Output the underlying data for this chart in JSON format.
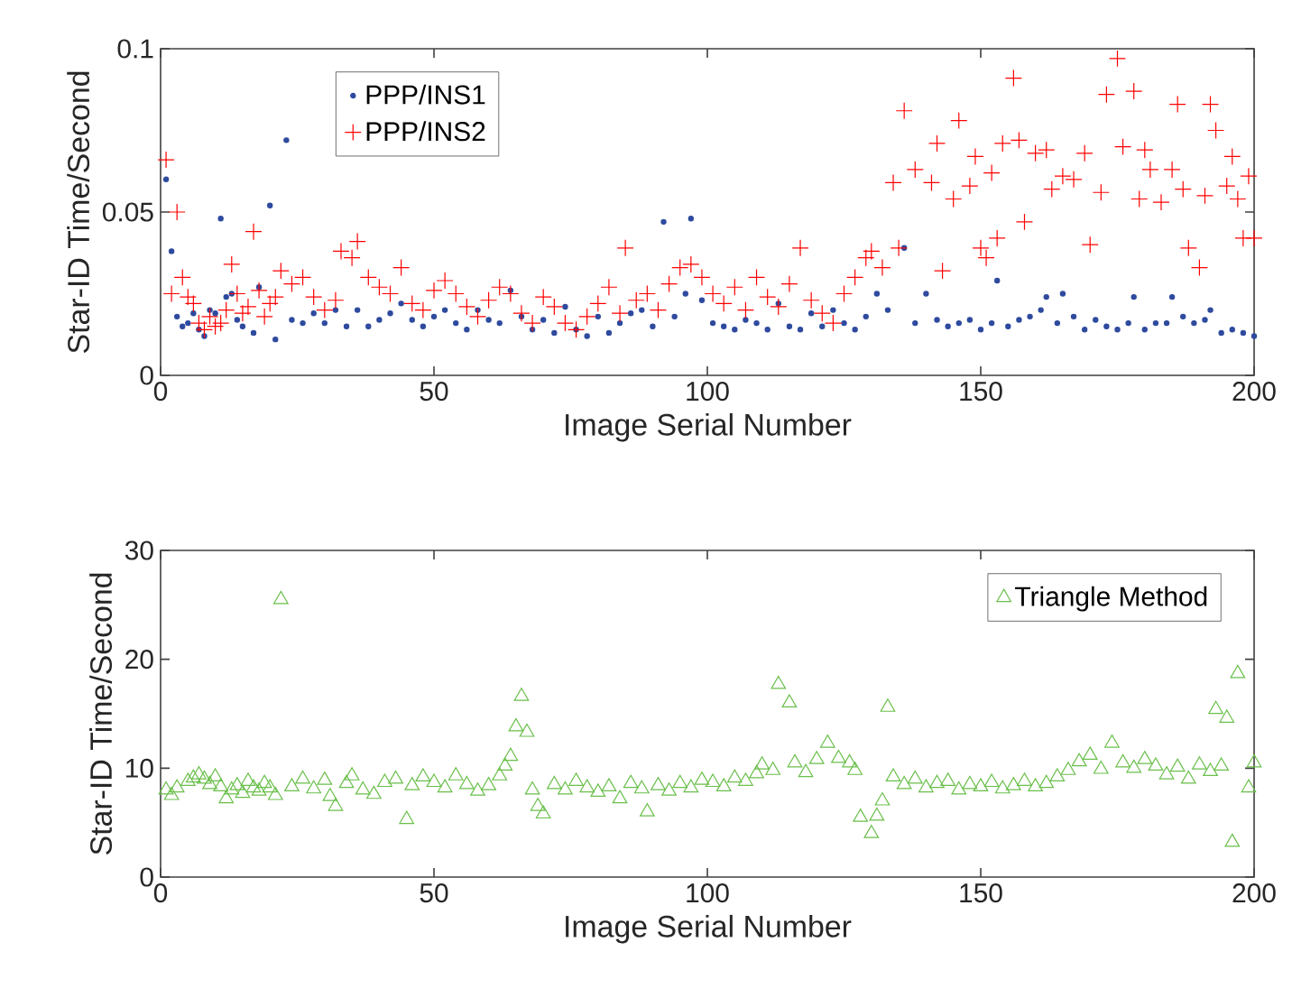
{
  "chart_data": [
    {
      "type": "scatter",
      "xlabel": "Image Serial Number",
      "ylabel": "Star-ID Time/Second",
      "xlim": [
        0,
        200
      ],
      "ylim": [
        0,
        0.1
      ],
      "xticks": [
        0,
        50,
        100,
        150,
        200
      ],
      "yticks": [
        0,
        0.05,
        0.1
      ],
      "legend": "top left",
      "series": [
        {
          "name": "PPP/INS1",
          "color": "#2e4a9e",
          "marker": "circle",
          "x": [
            1,
            2,
            3,
            4,
            5,
            6,
            7,
            8,
            9,
            10,
            11,
            12,
            13,
            14,
            15,
            17,
            18,
            20,
            21,
            23,
            24,
            26,
            28,
            30,
            32,
            34,
            36,
            38,
            40,
            42,
            44,
            46,
            48,
            50,
            52,
            54,
            56,
            58,
            60,
            62,
            64,
            66,
            68,
            70,
            72,
            74,
            76,
            78,
            80,
            82,
            84,
            86,
            88,
            90,
            92,
            94,
            96,
            97,
            99,
            101,
            103,
            105,
            107,
            109,
            111,
            113,
            115,
            117,
            119,
            121,
            123,
            125,
            127,
            129,
            131,
            133,
            136,
            138,
            140,
            142,
            144,
            146,
            148,
            150,
            152,
            153,
            155,
            157,
            159,
            161,
            162,
            164,
            165,
            167,
            169,
            171,
            173,
            175,
            177,
            178,
            180,
            182,
            184,
            185,
            187,
            189,
            191,
            192,
            194,
            196,
            198,
            200
          ],
          "values": [
            0.06,
            0.038,
            0.018,
            0.015,
            0.016,
            0.019,
            0.014,
            0.012,
            0.02,
            0.019,
            0.048,
            0.024,
            0.025,
            0.017,
            0.015,
            0.013,
            0.027,
            0.052,
            0.011,
            0.072,
            0.017,
            0.016,
            0.019,
            0.016,
            0.02,
            0.015,
            0.02,
            0.015,
            0.017,
            0.019,
            0.022,
            0.017,
            0.015,
            0.018,
            0.02,
            0.016,
            0.014,
            0.02,
            0.017,
            0.016,
            0.026,
            0.018,
            0.014,
            0.017,
            0.013,
            0.021,
            0.014,
            0.012,
            0.018,
            0.013,
            0.016,
            0.019,
            0.02,
            0.015,
            0.047,
            0.018,
            0.025,
            0.048,
            0.023,
            0.016,
            0.015,
            0.014,
            0.017,
            0.016,
            0.014,
            0.022,
            0.015,
            0.014,
            0.019,
            0.015,
            0.02,
            0.016,
            0.014,
            0.018,
            0.025,
            0.02,
            0.039,
            0.016,
            0.025,
            0.017,
            0.015,
            0.016,
            0.017,
            0.014,
            0.016,
            0.029,
            0.015,
            0.017,
            0.018,
            0.02,
            0.024,
            0.016,
            0.025,
            0.018,
            0.014,
            0.017,
            0.015,
            0.014,
            0.016,
            0.024,
            0.014,
            0.016,
            0.016,
            0.024,
            0.018,
            0.016,
            0.017,
            0.02,
            0.013,
            0.014,
            0.013,
            0.012
          ]
        },
        {
          "name": "PPP/INS2",
          "color": "#ff0000",
          "marker": "cross",
          "x": [
            1,
            2,
            3,
            4,
            5,
            6,
            7,
            8,
            9,
            10,
            11,
            12,
            13,
            14,
            15,
            16,
            17,
            18,
            19,
            20,
            21,
            22,
            24,
            26,
            28,
            30,
            32,
            33,
            35,
            36,
            38,
            40,
            42,
            44,
            46,
            48,
            50,
            52,
            54,
            56,
            58,
            60,
            62,
            64,
            66,
            68,
            70,
            72,
            74,
            76,
            78,
            80,
            82,
            84,
            85,
            87,
            89,
            91,
            93,
            95,
            97,
            99,
            101,
            103,
            105,
            107,
            109,
            111,
            113,
            115,
            117,
            119,
            121,
            123,
            125,
            127,
            129,
            130,
            132,
            134,
            135,
            136,
            138,
            141,
            142,
            143,
            145,
            146,
            148,
            149,
            150,
            151,
            152,
            153,
            154,
            156,
            157,
            158,
            160,
            162,
            163,
            165,
            167,
            169,
            170,
            172,
            173,
            175,
            176,
            178,
            179,
            180,
            181,
            183,
            185,
            186,
            187,
            188,
            190,
            191,
            192,
            193,
            195,
            196,
            197,
            198,
            199,
            200
          ],
          "values": [
            0.066,
            0.025,
            0.05,
            0.03,
            0.024,
            0.022,
            0.016,
            0.014,
            0.018,
            0.015,
            0.016,
            0.02,
            0.034,
            0.025,
            0.019,
            0.021,
            0.044,
            0.026,
            0.018,
            0.022,
            0.024,
            0.032,
            0.028,
            0.03,
            0.024,
            0.02,
            0.023,
            0.038,
            0.036,
            0.041,
            0.03,
            0.027,
            0.025,
            0.033,
            0.022,
            0.02,
            0.026,
            0.029,
            0.025,
            0.021,
            0.018,
            0.023,
            0.027,
            0.025,
            0.019,
            0.016,
            0.024,
            0.021,
            0.016,
            0.014,
            0.018,
            0.022,
            0.027,
            0.019,
            0.039,
            0.023,
            0.025,
            0.02,
            0.028,
            0.033,
            0.034,
            0.03,
            0.025,
            0.022,
            0.027,
            0.02,
            0.03,
            0.024,
            0.021,
            0.028,
            0.039,
            0.023,
            0.019,
            0.016,
            0.025,
            0.03,
            0.036,
            0.038,
            0.033,
            0.059,
            0.039,
            0.081,
            0.063,
            0.059,
            0.071,
            0.032,
            0.054,
            0.078,
            0.058,
            0.067,
            0.039,
            0.036,
            0.062,
            0.042,
            0.071,
            0.091,
            0.072,
            0.047,
            0.068,
            0.069,
            0.057,
            0.061,
            0.06,
            0.068,
            0.04,
            0.056,
            0.086,
            0.097,
            0.07,
            0.087,
            0.054,
            0.069,
            0.063,
            0.053,
            0.063,
            0.083,
            0.057,
            0.039,
            0.033,
            0.055,
            0.083,
            0.075,
            0.058,
            0.067,
            0.054,
            0.042,
            0.061,
            0.042
          ]
        }
      ]
    },
    {
      "type": "scatter",
      "xlabel": "Image Serial Number",
      "ylabel": "Star-ID Time/Second",
      "xlim": [
        0,
        200
      ],
      "ylim": [
        0,
        30
      ],
      "xticks": [
        0,
        50,
        100,
        150,
        200
      ],
      "yticks": [
        0,
        10,
        20,
        30
      ],
      "legend": "top right",
      "series": [
        {
          "name": "Triangle Method",
          "color": "#6abf4b",
          "marker": "triangle",
          "x": [
            1,
            2,
            3,
            5,
            6,
            7,
            8,
            9,
            10,
            11,
            12,
            13,
            14,
            15,
            16,
            17,
            18,
            19,
            20,
            21,
            22,
            24,
            26,
            28,
            30,
            31,
            32,
            34,
            35,
            37,
            39,
            41,
            43,
            45,
            46,
            48,
            50,
            52,
            54,
            56,
            58,
            60,
            62,
            63,
            64,
            65,
            66,
            67,
            68,
            69,
            70,
            72,
            74,
            76,
            78,
            80,
            82,
            84,
            86,
            88,
            89,
            91,
            93,
            95,
            97,
            99,
            101,
            103,
            105,
            107,
            109,
            110,
            112,
            113,
            115,
            116,
            118,
            120,
            122,
            124,
            126,
            127,
            128,
            130,
            131,
            132,
            133,
            134,
            136,
            138,
            140,
            142,
            144,
            146,
            148,
            150,
            152,
            154,
            156,
            158,
            160,
            162,
            164,
            166,
            168,
            170,
            172,
            174,
            176,
            178,
            180,
            182,
            184,
            186,
            188,
            190,
            192,
            193,
            194,
            195,
            196,
            197,
            199,
            200
          ],
          "values": [
            8.0,
            7.5,
            8.2,
            8.8,
            9.1,
            9.4,
            9.0,
            8.5,
            9.2,
            8.3,
            7.2,
            8.0,
            8.4,
            7.7,
            8.8,
            8.2,
            7.9,
            8.6,
            8.2,
            7.5,
            25.5,
            8.3,
            9.0,
            8.1,
            8.9,
            7.4,
            6.5,
            8.6,
            9.3,
            8.0,
            7.6,
            8.7,
            9.0,
            5.3,
            8.4,
            9.2,
            8.7,
            8.2,
            9.3,
            8.5,
            7.9,
            8.4,
            9.3,
            10.2,
            11.1,
            13.8,
            16.6,
            13.3,
            8.0,
            6.5,
            5.8,
            8.5,
            8.0,
            8.8,
            8.2,
            7.8,
            8.3,
            7.2,
            8.6,
            8.1,
            6.0,
            8.4,
            7.9,
            8.6,
            8.2,
            8.9,
            8.7,
            8.3,
            9.1,
            8.8,
            9.5,
            10.3,
            9.8,
            17.7,
            16.0,
            10.5,
            9.6,
            10.8,
            12.3,
            10.9,
            10.5,
            9.8,
            5.5,
            4.0,
            5.6,
            7.0,
            15.6,
            9.2,
            8.5,
            9.0,
            8.2,
            8.6,
            8.8,
            8.0,
            8.5,
            8.3,
            8.7,
            8.1,
            8.4,
            8.8,
            8.3,
            8.6,
            9.2,
            9.8,
            10.6,
            11.2,
            9.9,
            12.3,
            10.5,
            10.0,
            10.8,
            10.2,
            9.4,
            10.1,
            9.0,
            10.3,
            9.7,
            15.4,
            10.2,
            14.6,
            3.2,
            18.7,
            8.2,
            10.5
          ]
        }
      ]
    }
  ]
}
